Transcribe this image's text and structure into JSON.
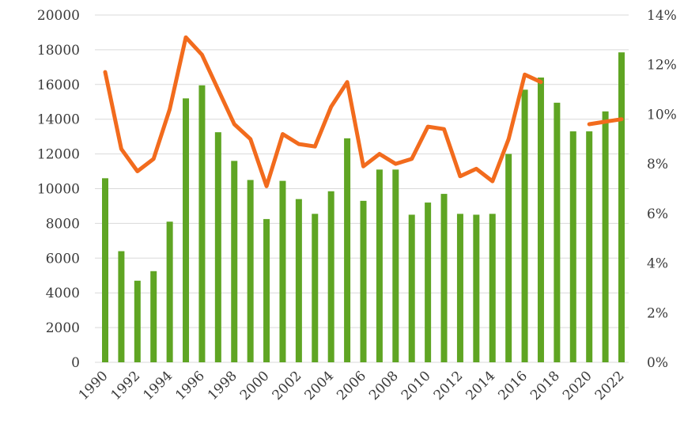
{
  "chart_data": {
    "type": "bar",
    "x": [
      1990,
      1991,
      1992,
      1993,
      1994,
      1995,
      1996,
      1997,
      1998,
      1999,
      2000,
      2001,
      2002,
      2003,
      2004,
      2005,
      2006,
      2007,
      2008,
      2009,
      2010,
      2011,
      2012,
      2013,
      2014,
      2015,
      2016,
      2017,
      2018,
      2019,
      2020,
      2021,
      2022
    ],
    "x_tick_labels": [
      "1990",
      "1992",
      "1994",
      "1996",
      "1998",
      "2000",
      "2002",
      "2004",
      "2006",
      "2008",
      "2010",
      "2012",
      "2014",
      "2016",
      "2018",
      "2020",
      "2022"
    ],
    "series": [
      {
        "type": "bar",
        "axis": "left",
        "color": "#5fa523",
        "values": [
          10600,
          6400,
          4700,
          5250,
          8100,
          15200,
          15950,
          13250,
          11600,
          10500,
          8250,
          10450,
          9400,
          8550,
          9850,
          12900,
          9300,
          11100,
          11100,
          8500,
          9200,
          9700,
          8550,
          8500,
          8550,
          12000,
          15700,
          16400,
          14950,
          13300,
          13300,
          14450,
          17850
        ]
      },
      {
        "type": "line",
        "axis": "right",
        "color": "#f26b1d",
        "values": [
          11.7,
          8.6,
          7.7,
          8.2,
          10.2,
          13.1,
          12.4,
          11.0,
          9.6,
          9.0,
          7.1,
          9.2,
          8.8,
          8.7,
          10.3,
          11.3,
          7.9,
          8.4,
          8.0,
          8.2,
          9.5,
          9.4,
          7.5,
          7.8,
          7.3,
          9.0,
          11.6,
          11.3,
          null,
          null,
          9.6,
          9.7,
          9.8
        ]
      }
    ],
    "y_left": {
      "ylim": [
        0,
        20000
      ],
      "ticks": [
        "0",
        "2000",
        "4000",
        "6000",
        "8000",
        "10000",
        "12000",
        "14000",
        "16000",
        "18000",
        "20000"
      ]
    },
    "y_right": {
      "ylim": [
        0,
        14
      ],
      "ticks": [
        "0%",
        "2%",
        "4%",
        "6%",
        "8%",
        "10%",
        "12%",
        "14%"
      ]
    },
    "grid": true
  }
}
